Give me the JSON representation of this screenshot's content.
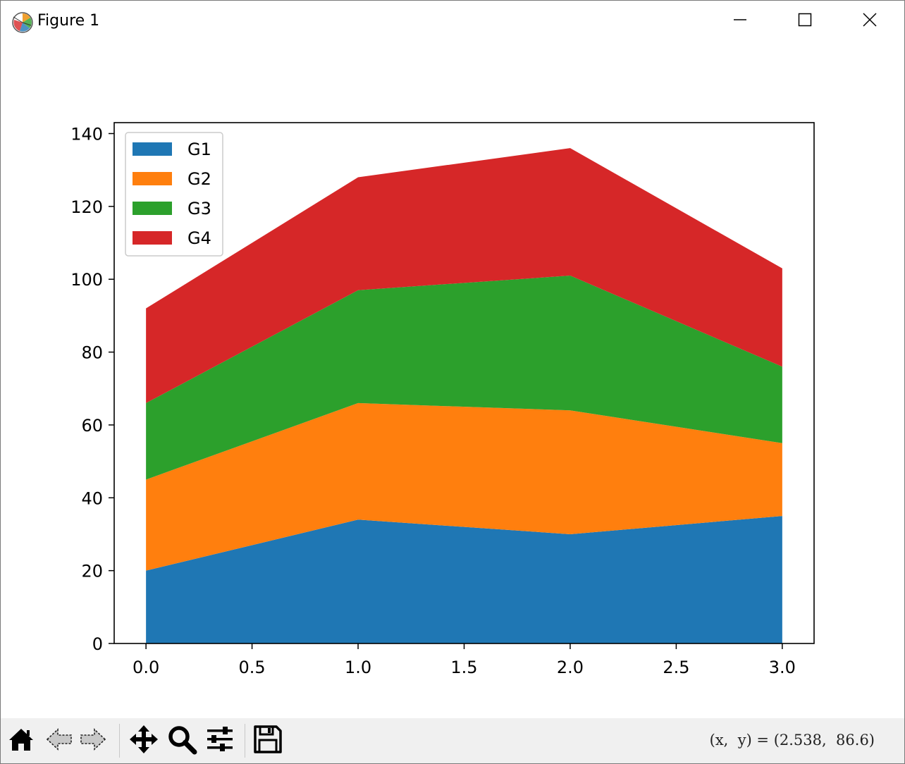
{
  "window": {
    "title": "Figure 1",
    "icon": "matplotlib-logo-icon",
    "controls": [
      "minimize-icon",
      "maximize-icon",
      "close-icon"
    ]
  },
  "toolbar": {
    "buttons": [
      {
        "name": "home",
        "icon": "home-icon"
      },
      {
        "name": "back",
        "icon": "arrow-left-icon"
      },
      {
        "name": "forward",
        "icon": "arrow-right-icon"
      },
      {
        "name": "pan",
        "icon": "move-icon"
      },
      {
        "name": "zoom",
        "icon": "magnifier-icon"
      },
      {
        "name": "configure-subplots",
        "icon": "sliders-icon"
      },
      {
        "name": "save",
        "icon": "floppy-disk-icon"
      }
    ],
    "coordinates": "(x,  y) = (2.538,  86.6)"
  },
  "chart_data": {
    "type": "area",
    "stacked": true,
    "x": [
      0,
      1,
      2,
      3
    ],
    "series": [
      {
        "name": "G1",
        "values": [
          20,
          34,
          30,
          35
        ],
        "color": "#1f77b4"
      },
      {
        "name": "G2",
        "values": [
          25,
          32,
          34,
          20
        ],
        "color": "#ff7f0e"
      },
      {
        "name": "G3",
        "values": [
          21,
          31,
          37,
          21
        ],
        "color": "#2ca02c"
      },
      {
        "name": "G4",
        "values": [
          26,
          31,
          35,
          27
        ],
        "color": "#d62728"
      }
    ],
    "xlim": [
      -0.15,
      3.15
    ],
    "ylim": [
      0,
      143
    ],
    "xticks": [
      0.0,
      0.5,
      1.0,
      1.5,
      2.0,
      2.5,
      3.0
    ],
    "xtick_labels": [
      "0.0",
      "0.5",
      "1.0",
      "1.5",
      "2.0",
      "2.5",
      "3.0"
    ],
    "yticks": [
      0,
      20,
      40,
      60,
      80,
      100,
      120,
      140
    ],
    "ytick_labels": [
      "0",
      "20",
      "40",
      "60",
      "80",
      "100",
      "120",
      "140"
    ],
    "title": "",
    "xlabel": "",
    "ylabel": "",
    "legend": {
      "placement": "upper-left",
      "entries": [
        "G1",
        "G2",
        "G3",
        "G4"
      ]
    },
    "grid": false
  }
}
